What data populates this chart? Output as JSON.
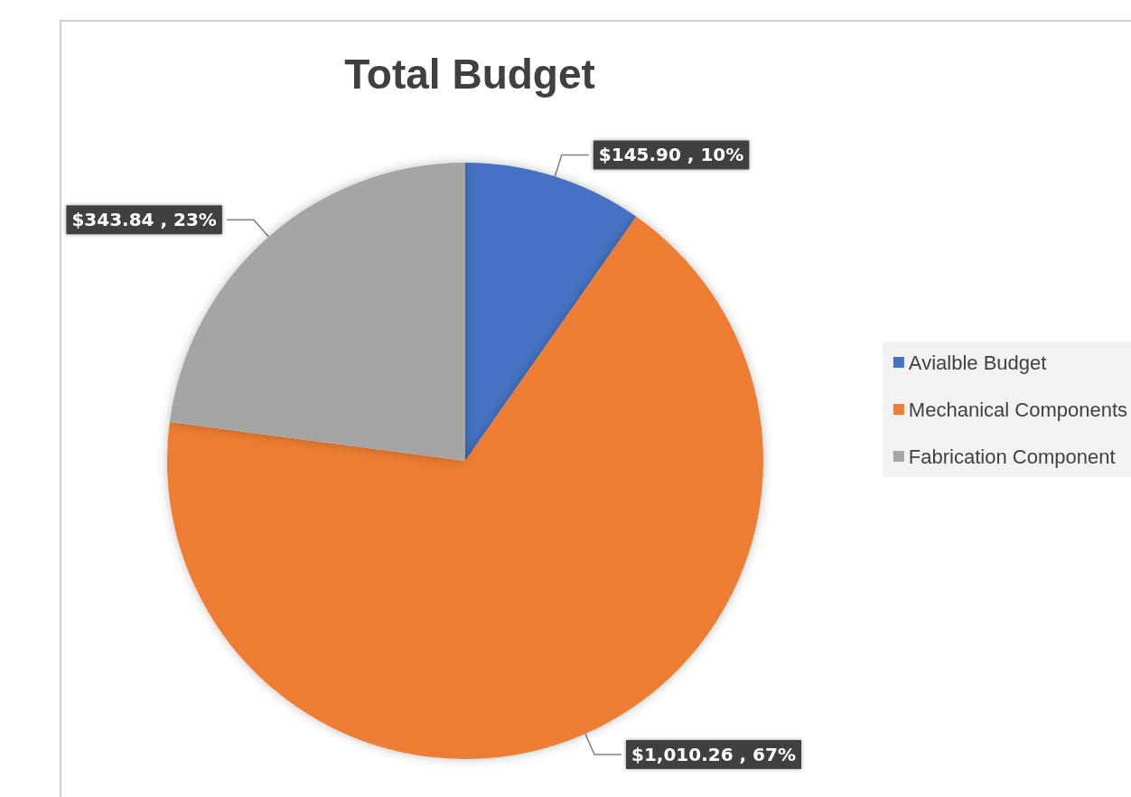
{
  "chart_data": {
    "type": "pie",
    "title": "Total Budget",
    "categories": [
      "Avialble Budget",
      "Mechanical Components",
      "Fabrication Component"
    ],
    "values": [
      145.9,
      1010.26,
      343.84
    ],
    "colors": [
      "#4472c4",
      "#ed7d31",
      "#a5a5a5"
    ],
    "value_labels": [
      "$145.90 , 10%",
      "$1,010.26 , 67%",
      "$343.84 , 23%"
    ],
    "legend": "right"
  }
}
